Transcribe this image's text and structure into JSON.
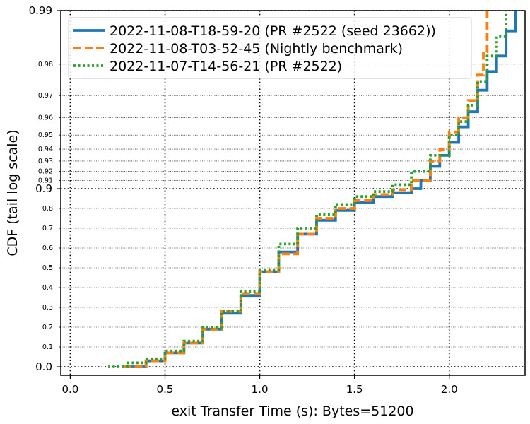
{
  "chart_data": {
    "type": "line",
    "xlabel": "exit Transfer Time (s): Bytes=51200",
    "ylabel": "CDF (tail log scale)",
    "xlim": [
      -0.05,
      2.4
    ],
    "y_scale": "tail-log",
    "xticks": [
      {
        "value": 0.0,
        "label": "0.0"
      },
      {
        "value": 0.5,
        "label": "0.5"
      },
      {
        "value": 1.0,
        "label": "1.0"
      },
      {
        "value": 1.5,
        "label": "1.5"
      },
      {
        "value": 2.0,
        "label": "2.0"
      }
    ],
    "yticks_major": [
      {
        "value": 0.0,
        "label": "0.0"
      },
      {
        "value": 0.9,
        "label": "0.9"
      },
      {
        "value": 0.99,
        "label": "0.99"
      }
    ],
    "yticks_minor": [
      {
        "value": 0.1,
        "label": "0.1"
      },
      {
        "value": 0.2,
        "label": "0.2"
      },
      {
        "value": 0.3,
        "label": "0.3"
      },
      {
        "value": 0.4,
        "label": "0.4"
      },
      {
        "value": 0.5,
        "label": "0.5"
      },
      {
        "value": 0.6,
        "label": "0.6"
      },
      {
        "value": 0.7,
        "label": "0.7"
      },
      {
        "value": 0.8,
        "label": "0.8"
      },
      {
        "value": 0.91,
        "label": "0.91"
      },
      {
        "value": 0.92,
        "label": "0.92"
      },
      {
        "value": 0.93,
        "label": "0.93"
      },
      {
        "value": 0.94,
        "label": "0.94"
      },
      {
        "value": 0.95,
        "label": "0.95"
      },
      {
        "value": 0.96,
        "label": "0.96"
      },
      {
        "value": 0.97,
        "label": "0.97"
      },
      {
        "value": 0.98,
        "label": "0.98"
      }
    ],
    "grid": true,
    "legend_position": "top-left",
    "series": [
      {
        "name": "2022-11-08-T18-59-20 (PR #2522 (seed 23662))",
        "color": "#1f77b4",
        "style": "solid",
        "points": [
          [
            0.3,
            0.0
          ],
          [
            0.4,
            0.03
          ],
          [
            0.5,
            0.07
          ],
          [
            0.6,
            0.12
          ],
          [
            0.7,
            0.19
          ],
          [
            0.8,
            0.27
          ],
          [
            0.9,
            0.36
          ],
          [
            1.0,
            0.48
          ],
          [
            1.1,
            0.58
          ],
          [
            1.2,
            0.67
          ],
          [
            1.3,
            0.74
          ],
          [
            1.4,
            0.79
          ],
          [
            1.5,
            0.83
          ],
          [
            1.6,
            0.86
          ],
          [
            1.7,
            0.88
          ],
          [
            1.8,
            0.9
          ],
          [
            1.85,
            0.91
          ],
          [
            1.9,
            0.925
          ],
          [
            1.95,
            0.935
          ],
          [
            2.0,
            0.945
          ],
          [
            2.05,
            0.955
          ],
          [
            2.1,
            0.963
          ],
          [
            2.15,
            0.972
          ],
          [
            2.2,
            0.978
          ],
          [
            2.25,
            0.982
          ],
          [
            2.3,
            0.987
          ],
          [
            2.35,
            0.99
          ]
        ]
      },
      {
        "name": "2022-11-08-T03-52-45 (Nightly benchmark)",
        "color": "#ff7f0e",
        "style": "dashed",
        "points": [
          [
            0.28,
            0.0
          ],
          [
            0.4,
            0.03
          ],
          [
            0.5,
            0.07
          ],
          [
            0.6,
            0.12
          ],
          [
            0.7,
            0.19
          ],
          [
            0.8,
            0.28
          ],
          [
            0.9,
            0.37
          ],
          [
            1.0,
            0.48
          ],
          [
            1.1,
            0.57
          ],
          [
            1.2,
            0.67
          ],
          [
            1.3,
            0.75
          ],
          [
            1.4,
            0.8
          ],
          [
            1.5,
            0.84
          ],
          [
            1.6,
            0.87
          ],
          [
            1.7,
            0.895
          ],
          [
            1.8,
            0.91
          ],
          [
            1.9,
            0.93
          ],
          [
            1.95,
            0.94
          ],
          [
            2.0,
            0.952
          ],
          [
            2.05,
            0.96
          ],
          [
            2.1,
            0.968
          ],
          [
            2.15,
            0.977
          ],
          [
            2.18,
            0.983
          ],
          [
            2.2,
            0.99
          ]
        ]
      },
      {
        "name": "2022-11-07-T14-56-21 (PR #2522)",
        "color": "#2ca02c",
        "style": "dotted",
        "points": [
          [
            0.2,
            0.0
          ],
          [
            0.3,
            0.02
          ],
          [
            0.4,
            0.04
          ],
          [
            0.5,
            0.08
          ],
          [
            0.6,
            0.13
          ],
          [
            0.7,
            0.2
          ],
          [
            0.8,
            0.28
          ],
          [
            0.9,
            0.38
          ],
          [
            1.0,
            0.49
          ],
          [
            1.1,
            0.62
          ],
          [
            1.2,
            0.7
          ],
          [
            1.3,
            0.77
          ],
          [
            1.4,
            0.82
          ],
          [
            1.5,
            0.86
          ],
          [
            1.6,
            0.885
          ],
          [
            1.7,
            0.905
          ],
          [
            1.8,
            0.92
          ],
          [
            1.9,
            0.935
          ],
          [
            2.0,
            0.95
          ],
          [
            2.05,
            0.958
          ],
          [
            2.1,
            0.966
          ],
          [
            2.15,
            0.975
          ],
          [
            2.2,
            0.982
          ],
          [
            2.25,
            0.986
          ],
          [
            2.3,
            0.99
          ]
        ]
      }
    ]
  }
}
